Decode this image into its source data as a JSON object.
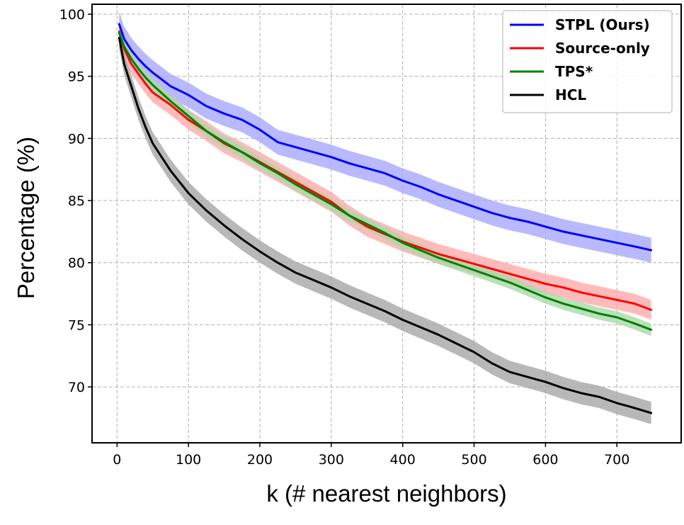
{
  "chart_data": {
    "type": "line",
    "title": "",
    "xlabel": "k (# nearest neighbors)",
    "ylabel": "Percentage (%)",
    "xlim": [
      -35,
      790
    ],
    "ylim": [
      65.5,
      100.8
    ],
    "xticks": [
      0,
      100,
      200,
      300,
      400,
      500,
      600,
      700
    ],
    "yticks": [
      70,
      75,
      80,
      85,
      90,
      95,
      100
    ],
    "grid": true,
    "legend_position": "top-right",
    "x": [
      3,
      10,
      20,
      30,
      40,
      50,
      75,
      100,
      125,
      150,
      175,
      200,
      225,
      250,
      275,
      300,
      325,
      350,
      375,
      400,
      425,
      450,
      475,
      500,
      525,
      550,
      575,
      600,
      625,
      650,
      675,
      700,
      725,
      748
    ],
    "series": [
      {
        "name": "STPL (Ours)",
        "color": "#0000ff",
        "band_color": "#a8a8ff",
        "values": [
          99.2,
          98.0,
          97.1,
          96.4,
          95.8,
          95.3,
          94.2,
          93.5,
          92.6,
          92.0,
          91.5,
          90.7,
          89.7,
          89.3,
          88.9,
          88.5,
          88.0,
          87.6,
          87.2,
          86.6,
          86.1,
          85.5,
          85.0,
          84.5,
          84.0,
          83.6,
          83.3,
          82.9,
          82.5,
          82.2,
          81.9,
          81.6,
          81.3,
          81.0
        ],
        "band": 1.0
      },
      {
        "name": "Source-only",
        "color": "#ff0000",
        "band_color": "#ffaaaa",
        "values": [
          98.6,
          97.2,
          96.0,
          95.2,
          94.4,
          93.7,
          92.7,
          91.5,
          90.6,
          89.6,
          88.9,
          88.1,
          87.3,
          86.5,
          85.7,
          84.9,
          83.8,
          82.9,
          82.3,
          81.7,
          81.2,
          80.7,
          80.3,
          79.9,
          79.5,
          79.1,
          78.7,
          78.3,
          78.0,
          77.6,
          77.3,
          77.0,
          76.7,
          76.2
        ],
        "band": 0.8
      },
      {
        "name": "TPS*",
        "color": "#008000",
        "band_color": "#a9d9a9",
        "values": [
          98.5,
          97.4,
          96.4,
          95.6,
          94.9,
          94.3,
          93.0,
          91.8,
          90.6,
          89.7,
          88.9,
          88.0,
          87.2,
          86.3,
          85.5,
          84.7,
          83.8,
          83.1,
          82.4,
          81.6,
          81.0,
          80.4,
          79.9,
          79.4,
          78.9,
          78.4,
          77.8,
          77.2,
          76.7,
          76.3,
          75.9,
          75.6,
          75.1,
          74.6
        ],
        "band": 0.5
      },
      {
        "name": "HCL",
        "color": "#000000",
        "band_color": "#a6a6a6",
        "values": [
          98.1,
          96.0,
          94.2,
          92.4,
          90.9,
          89.6,
          87.4,
          85.6,
          84.2,
          83.0,
          81.9,
          80.9,
          80.0,
          79.2,
          78.6,
          78.0,
          77.3,
          76.7,
          76.1,
          75.4,
          74.8,
          74.2,
          73.5,
          72.8,
          71.9,
          71.2,
          70.8,
          70.4,
          69.9,
          69.5,
          69.2,
          68.7,
          68.3,
          67.9
        ],
        "band": 0.9
      }
    ]
  }
}
